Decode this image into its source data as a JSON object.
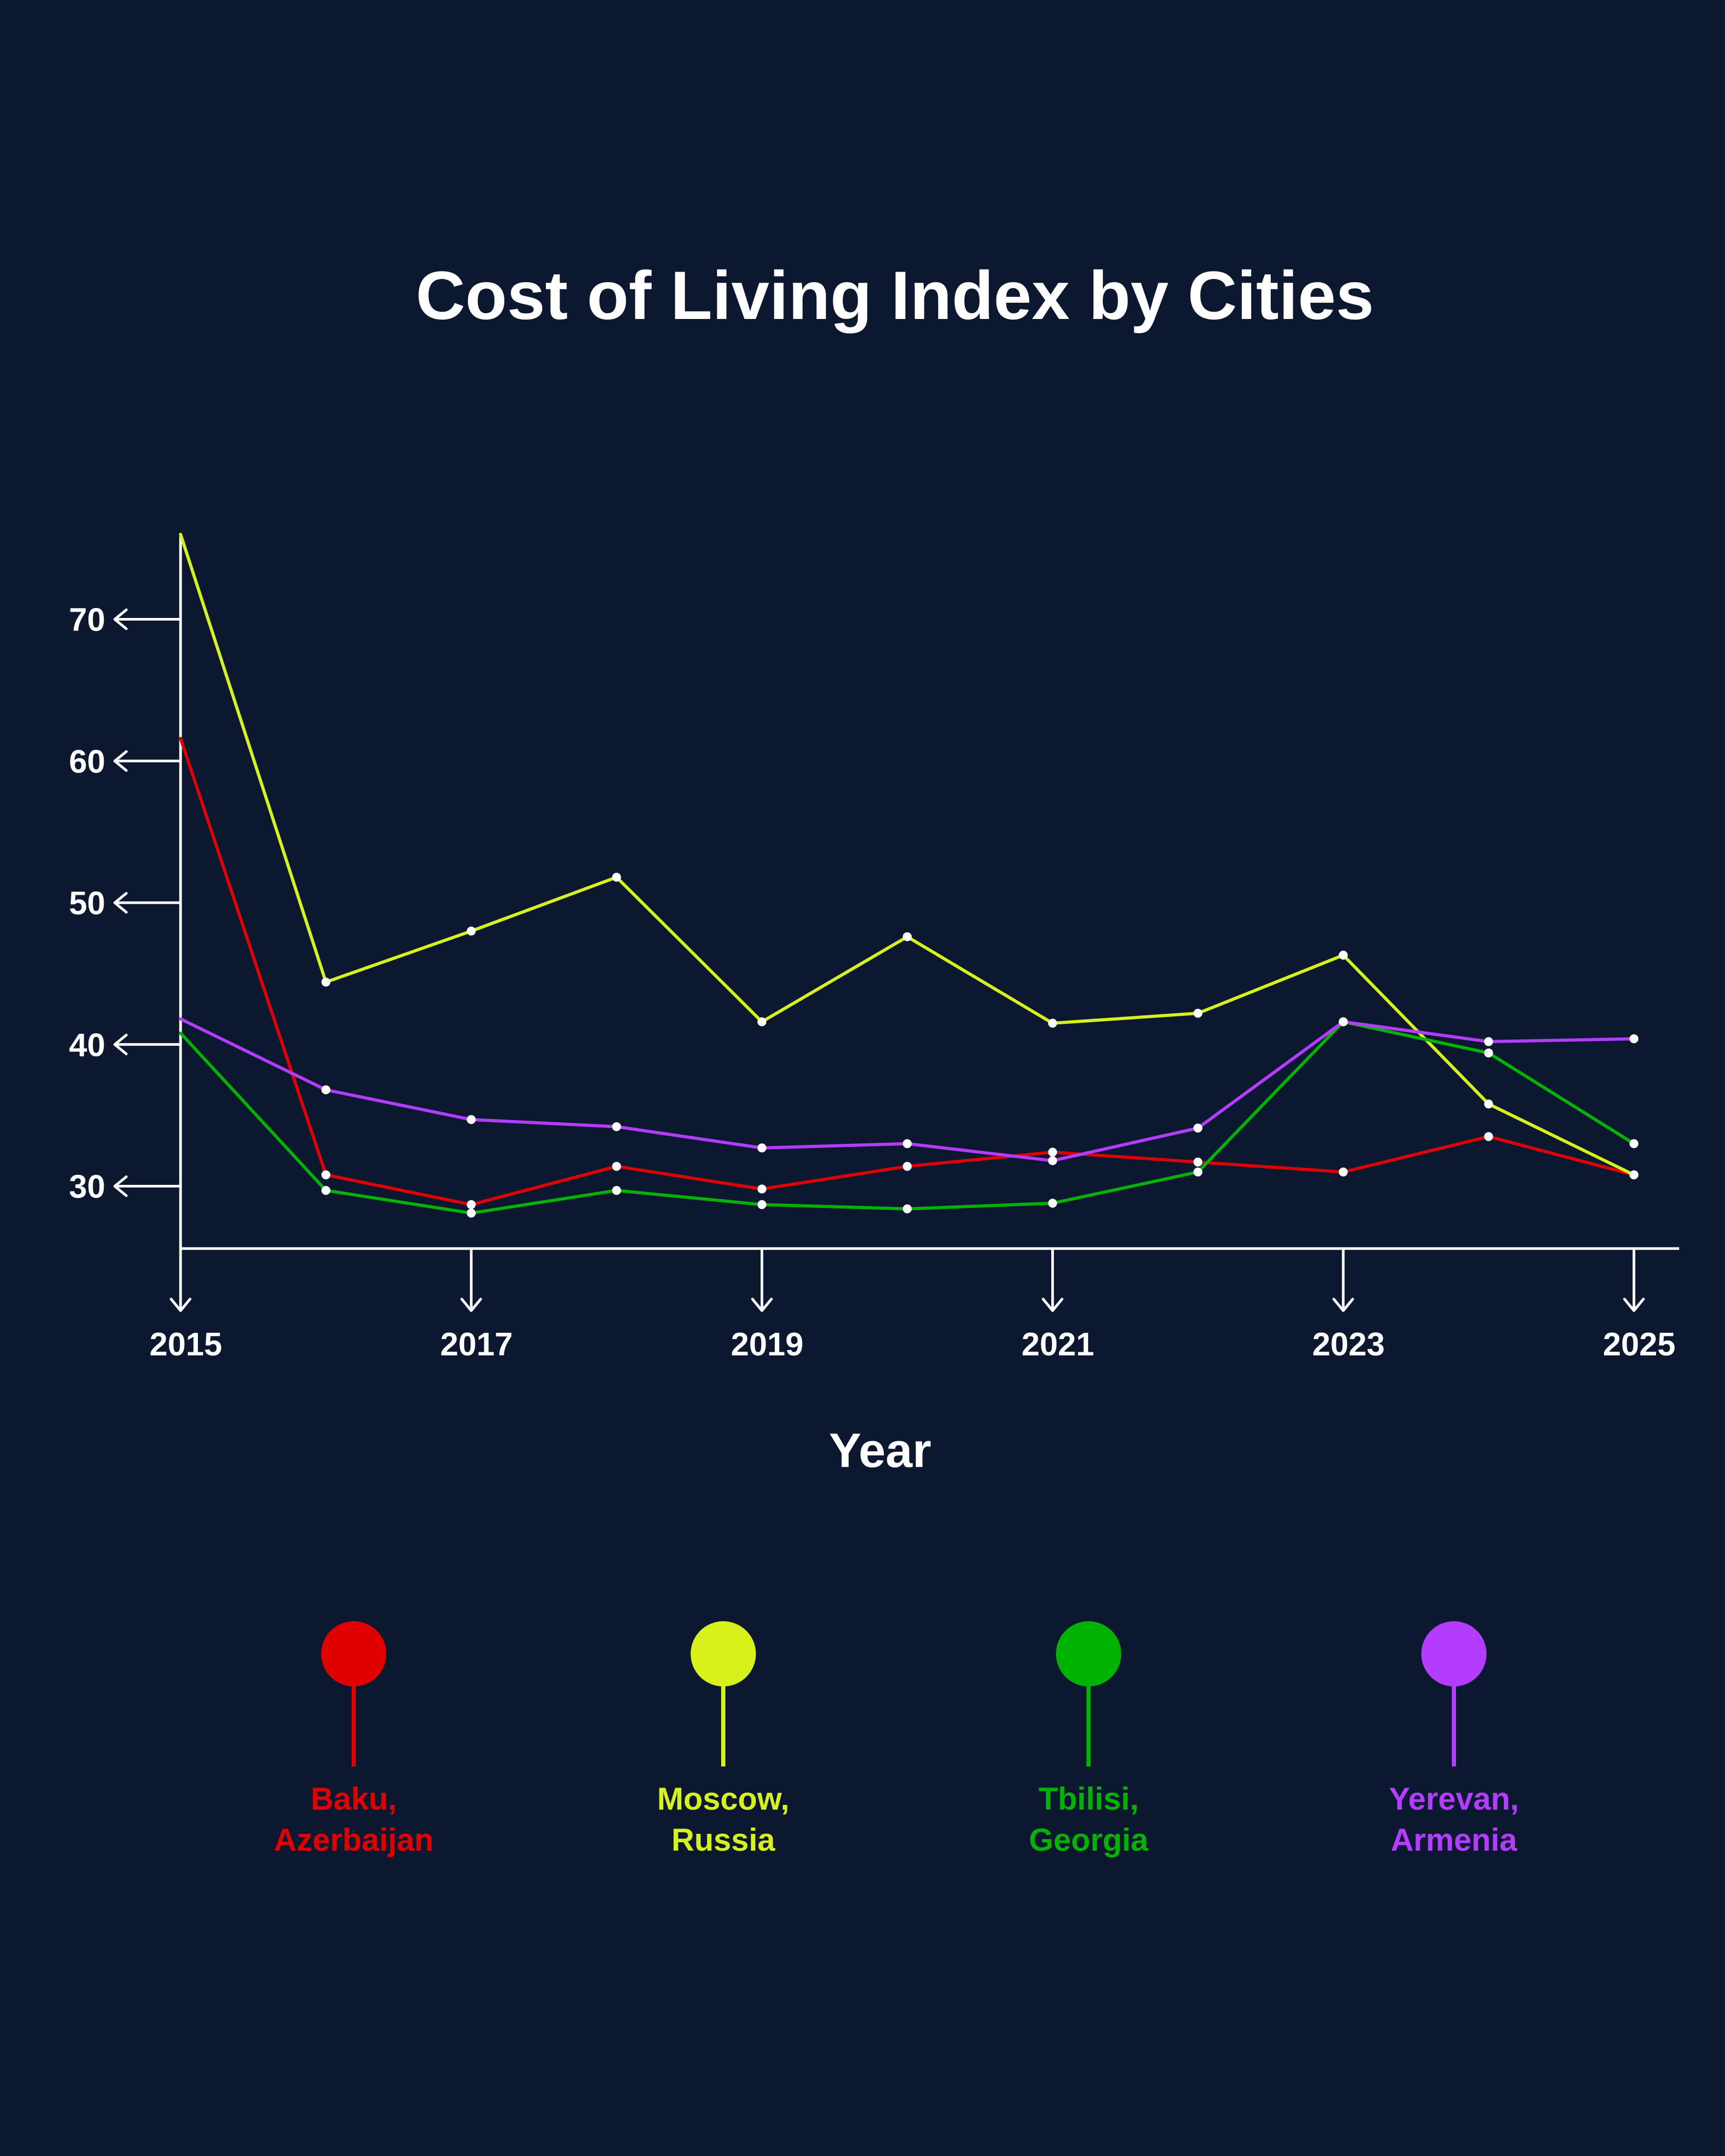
{
  "chart_data": {
    "type": "line",
    "title": "Cost of Living Index by Cities",
    "xlabel": "Year",
    "ylabel": "",
    "x": [
      2015,
      2016,
      2017,
      2018,
      2019,
      2020,
      2021,
      2022,
      2023,
      2024,
      2025
    ],
    "x_ticks": [
      "2015",
      "2017",
      "2019",
      "2021",
      "2023",
      "2025"
    ],
    "y_ticks": [
      "30",
      "40",
      "50",
      "60",
      "70"
    ],
    "xlim": [
      2015,
      2025
    ],
    "ylim": [
      25.6,
      76
    ],
    "grid": false,
    "legend_position": "bottom",
    "series": [
      {
        "name": "Baku, Azerbaijan",
        "label_lines": [
          "Baku,",
          "Azerbaijan"
        ],
        "color": "#e10000",
        "values": [
          61.6,
          30.8,
          28.7,
          31.4,
          29.8,
          31.4,
          32.4,
          31.7,
          31.0,
          33.5,
          30.8
        ]
      },
      {
        "name": "Moscow, Russia",
        "label_lines": [
          "Moscow,",
          "Russia"
        ],
        "color": "#d7f21a",
        "values": [
          76.0,
          44.4,
          48.0,
          51.8,
          41.6,
          47.6,
          41.5,
          42.2,
          46.3,
          35.8,
          30.8
        ]
      },
      {
        "name": "Tbilisi, Georgia",
        "label_lines": [
          "Tbilisi,",
          "Georgia"
        ],
        "color": "#00b300",
        "values": [
          40.8,
          29.7,
          28.1,
          29.7,
          28.7,
          28.4,
          28.8,
          31.0,
          41.6,
          39.4,
          33.0
        ]
      },
      {
        "name": "Yerevan, Armenia",
        "label_lines": [
          "Yerevan,",
          "Armenia"
        ],
        "color": "#b43cff",
        "values": [
          41.8,
          36.8,
          34.7,
          34.2,
          32.7,
          33.0,
          31.8,
          34.1,
          41.6,
          40.2,
          40.4
        ]
      }
    ],
    "colors": {
      "background": "#0b1830",
      "axis": "#ffffff",
      "marker": "#ffffff"
    }
  }
}
